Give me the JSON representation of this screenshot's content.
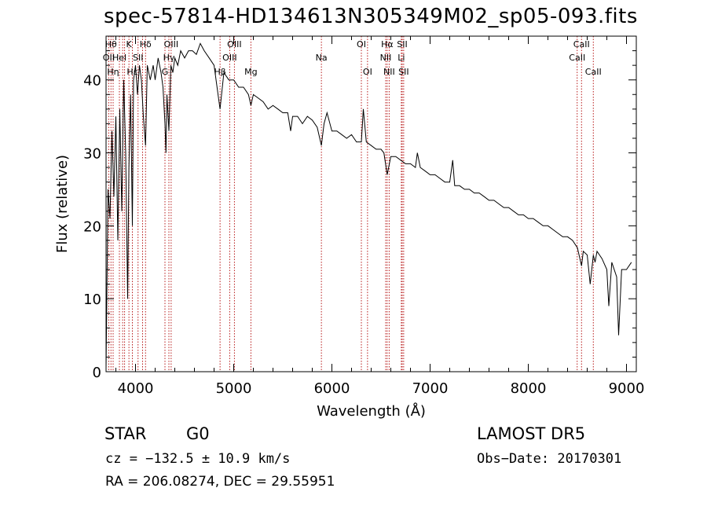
{
  "chart_data": {
    "type": "line",
    "title": "spec-57814-HD134613N305349M02_sp05-093.fits",
    "xlabel": "Wavelength (Å)",
    "ylabel": "Flux (relative)",
    "xlim": [
      3700,
      9100
    ],
    "ylim": [
      0,
      46
    ],
    "xticks": [
      4000,
      5000,
      6000,
      7000,
      8000,
      9000
    ],
    "yticks": [
      0,
      10,
      20,
      30,
      40
    ],
    "series": [
      {
        "x": [
          3700,
          3720,
          3740,
          3760,
          3780,
          3800,
          3820,
          3840,
          3860,
          3880,
          3900,
          3920,
          3933,
          3950,
          3968,
          3980,
          4000,
          4020,
          4040,
          4060,
          4080,
          4102,
          4120,
          4150,
          4180,
          4200,
          4230,
          4260,
          4280,
          4300,
          4310,
          4320,
          4340,
          4360,
          4380,
          4400,
          4430,
          4460,
          4500,
          4540,
          4580,
          4620,
          4660,
          4700,
          4750,
          4800,
          4861,
          4900,
          4950,
          5000,
          5050,
          5100,
          5150,
          5175,
          5200,
          5250,
          5300,
          5350,
          5400,
          5450,
          5500,
          5550,
          5580,
          5600,
          5650,
          5700,
          5750,
          5800,
          5850,
          5893,
          5920,
          5950,
          6000,
          6050,
          6100,
          6150,
          6200,
          6250,
          6300,
          6320,
          6350,
          6400,
          6450,
          6500,
          6530,
          6563,
          6600,
          6650,
          6700,
          6750,
          6800,
          6850,
          6870,
          6900,
          6950,
          7000,
          7050,
          7100,
          7150,
          7200,
          7230,
          7250,
          7300,
          7350,
          7400,
          7450,
          7500,
          7550,
          7600,
          7650,
          7700,
          7750,
          7800,
          7850,
          7900,
          7950,
          8000,
          8050,
          8100,
          8150,
          8200,
          8250,
          8300,
          8350,
          8400,
          8450,
          8500,
          8542,
          8560,
          8600,
          8630,
          8662,
          8680,
          8700,
          8750,
          8800,
          8820,
          8850,
          8900,
          8920,
          8950,
          9000,
          9050
        ],
        "y": [
          0.5,
          25,
          21,
          33,
          24,
          35,
          18,
          36,
          22,
          40,
          30,
          10,
          28,
          38,
          20,
          40,
          42,
          38,
          42,
          40,
          35,
          31,
          42,
          40,
          42,
          40,
          43,
          41,
          39,
          34,
          30,
          38,
          33,
          42,
          41,
          43,
          42,
          44,
          43,
          44,
          44,
          43.5,
          45,
          44,
          43,
          42,
          36,
          41,
          40,
          40,
          39,
          39,
          38,
          36.5,
          38,
          37.5,
          37,
          36,
          36.5,
          36,
          35.5,
          35.5,
          33,
          35,
          35,
          34,
          35,
          34.5,
          33.5,
          31,
          34,
          35.5,
          33,
          33,
          32.5,
          32,
          32.5,
          31.5,
          31.5,
          36,
          31.5,
          31,
          30.5,
          30.5,
          30,
          27,
          29.5,
          29.5,
          29,
          28.5,
          28.5,
          28,
          30,
          28,
          27.5,
          27,
          27,
          26.5,
          26,
          26,
          29,
          25.5,
          25.5,
          25,
          25,
          24.5,
          24.5,
          24,
          23.5,
          23.5,
          23,
          22.5,
          22.5,
          22,
          21.5,
          21.5,
          21,
          21,
          20.5,
          20,
          20,
          19.5,
          19,
          18.5,
          18.5,
          18,
          17,
          14.5,
          16.5,
          16,
          12,
          16,
          15,
          16.5,
          15.5,
          14,
          9,
          15,
          13,
          5,
          14,
          14,
          15
        ]
      }
    ],
    "vlines": [
      {
        "x": 3727,
        "label": "OII",
        "row": 1
      },
      {
        "x": 3750,
        "label": "Hθ",
        "row": 0
      },
      {
        "x": 3772,
        "label": "Hη",
        "row": 2
      },
      {
        "x": 3836,
        "label": "Hel",
        "row": 1
      },
      {
        "x": 3869,
        "label": "",
        "row": -1
      },
      {
        "x": 3889,
        "label": "",
        "row": -1
      },
      {
        "x": 3933,
        "label": "K",
        "row": 0
      },
      {
        "x": 3968,
        "label": "Hε",
        "row": 2
      },
      {
        "x": 4026,
        "label": "SII",
        "row": 1
      },
      {
        "x": 4072,
        "label": "",
        "row": -1
      },
      {
        "x": 4102,
        "label": "Hδ",
        "row": 0
      },
      {
        "x": 4300,
        "label": "G",
        "row": 2
      },
      {
        "x": 4340,
        "label": "Hγ",
        "row": 1
      },
      {
        "x": 4363,
        "label": "OIII",
        "row": 0
      },
      {
        "x": 4861,
        "label": "Hβ",
        "row": 2
      },
      {
        "x": 4959,
        "label": "OIII",
        "row": 1
      },
      {
        "x": 5007,
        "label": "OIII",
        "row": 0
      },
      {
        "x": 5175,
        "label": "Mg",
        "row": 2
      },
      {
        "x": 5893,
        "label": "Na",
        "row": 1
      },
      {
        "x": 6300,
        "label": "OI",
        "row": 0
      },
      {
        "x": 6363,
        "label": "OI",
        "row": 2
      },
      {
        "x": 6548,
        "label": "NII",
        "row": 1
      },
      {
        "x": 6563,
        "label": "Hα",
        "row": 0
      },
      {
        "x": 6583,
        "label": "NII",
        "row": 2
      },
      {
        "x": 6707,
        "label": "Li",
        "row": 1
      },
      {
        "x": 6716,
        "label": "SII",
        "row": 0
      },
      {
        "x": 6731,
        "label": "SII",
        "row": 2
      },
      {
        "x": 8498,
        "label": "CaII",
        "row": 1
      },
      {
        "x": 8542,
        "label": "CaII",
        "row": 0
      },
      {
        "x": 8662,
        "label": "CaII",
        "row": 2
      }
    ]
  },
  "info": {
    "object_class": "STAR",
    "subclass": "G0",
    "survey": "LAMOST DR5",
    "cz": "cz = −132.5 ± 10.9 km/s",
    "obs_date": "Obs−Date: 20170301",
    "coords": "RA = 206.08274, DEC =  29.55951"
  },
  "colors": {
    "spectrum": "#000000",
    "line_markers": "#b00000",
    "background": "#ffffff"
  }
}
